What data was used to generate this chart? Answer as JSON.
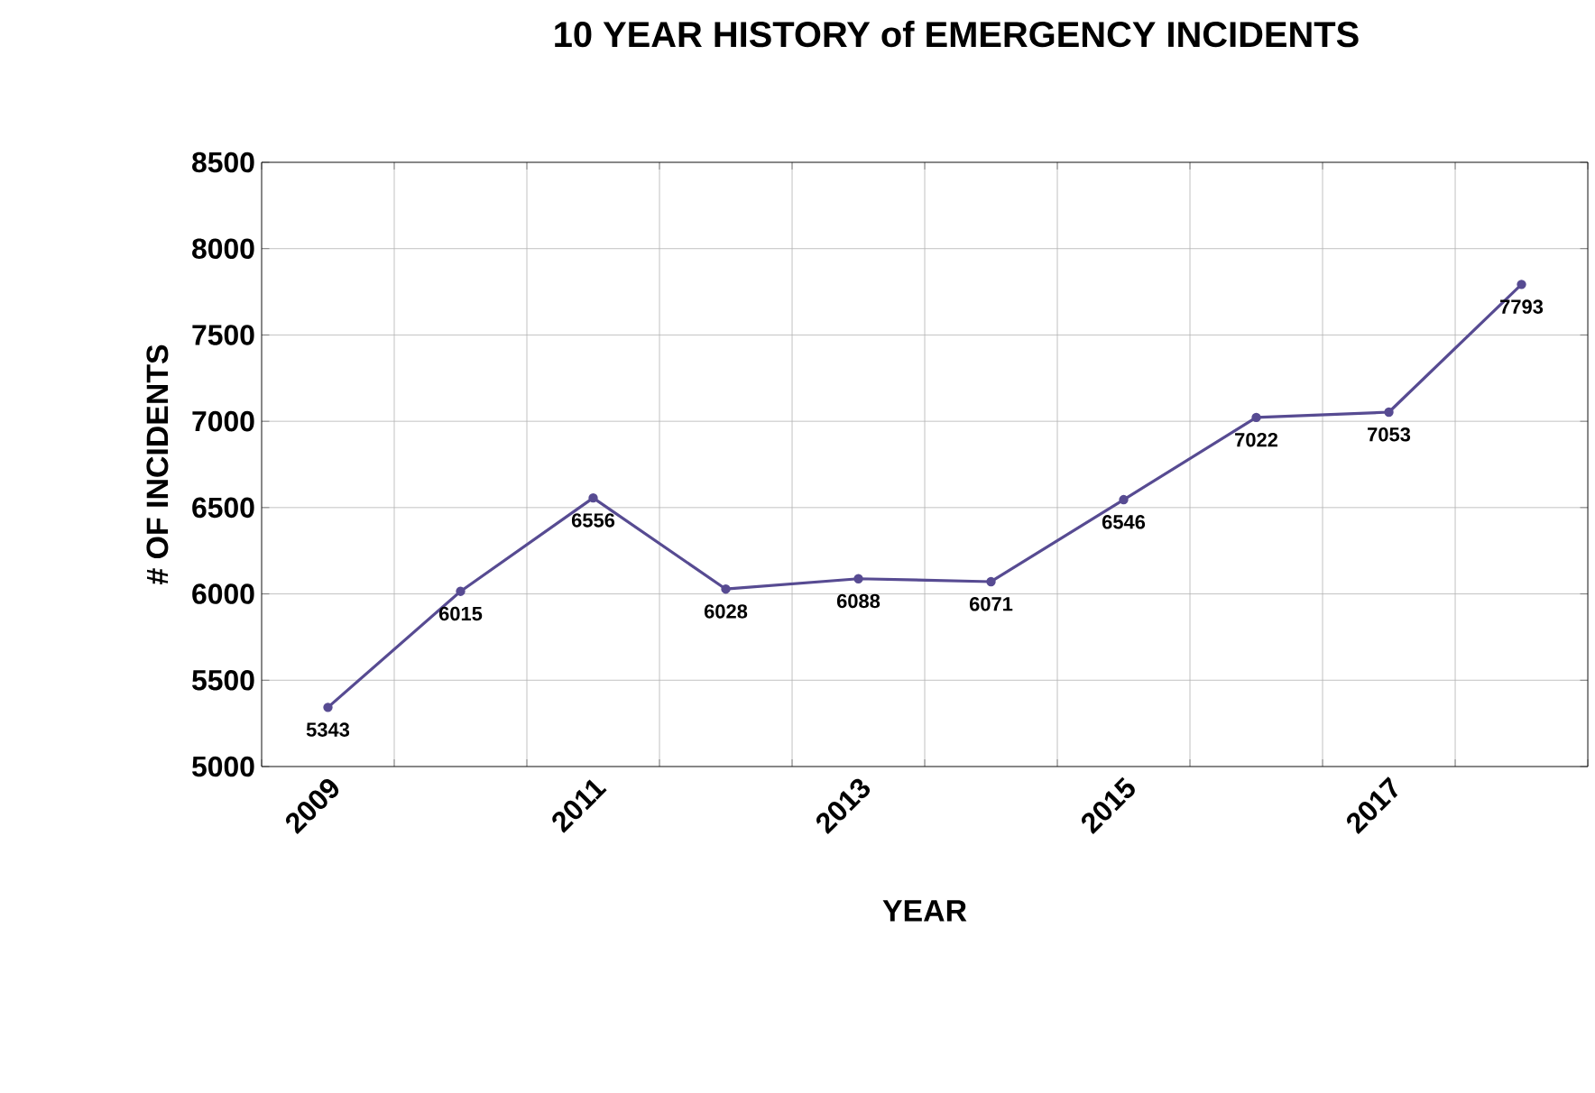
{
  "chart_data": {
    "type": "line",
    "title": "10 YEAR HISTORY of EMERGENCY INCIDENTS",
    "xlabel": "YEAR",
    "ylabel": "# OF INCIDENTS",
    "categories": [
      "2009",
      null,
      "2011",
      null,
      "2013",
      null,
      "2015",
      null,
      "2017",
      null
    ],
    "values": [
      5343,
      6015,
      6556,
      6028,
      6088,
      6071,
      6546,
      7022,
      7053,
      7793
    ],
    "color": "#574b92",
    "ylim": [
      5000,
      8500
    ],
    "yticks": [
      5000,
      5500,
      6000,
      6500,
      7000,
      7500,
      8000,
      8500
    ],
    "grid": true,
    "marker": "circle",
    "line_style": "solid",
    "data_labels": true
  }
}
